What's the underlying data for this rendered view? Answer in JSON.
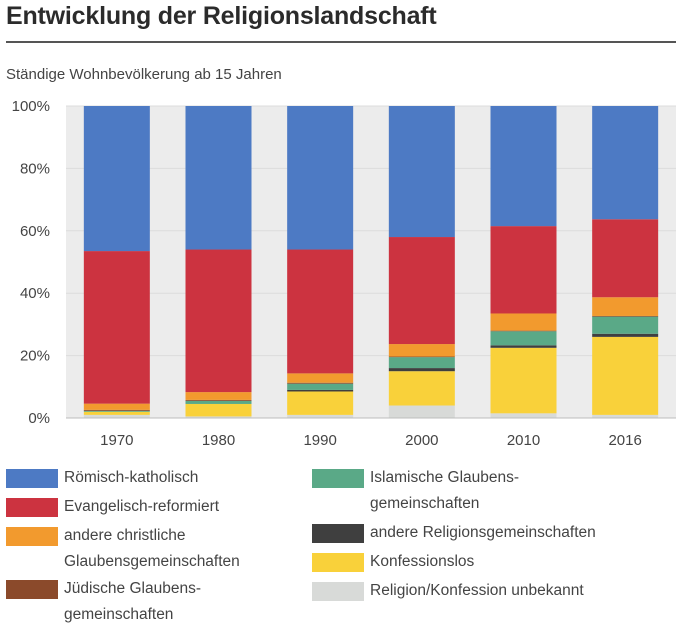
{
  "header": {
    "title": "Entwicklung der Religionslandschaft",
    "subtitle": "Ständige Wohnbevölkerung ab 15 Jahren"
  },
  "chart_data": {
    "type": "bar",
    "stacked": true,
    "title": "Entwicklung der Religionslandschaft",
    "subtitle": "Ständige Wohnbevölkerung ab 15 Jahren",
    "categories": [
      "1970",
      "1980",
      "1990",
      "2000",
      "2010",
      "2016"
    ],
    "ylim": [
      0,
      100
    ],
    "yticks": [
      "0%",
      "20%",
      "40%",
      "60%",
      "80%",
      "100%"
    ],
    "ytick_values": [
      0,
      20,
      40,
      60,
      80,
      100
    ],
    "series": [
      {
        "name": "Religion/Konfession unbekannt",
        "color": "#d8dad8",
        "values": [
          1.0,
          0.5,
          1.0,
          4.0,
          1.5,
          1.0
        ]
      },
      {
        "name": "Konfessionslos",
        "color": "#f9d13a",
        "values": [
          1.0,
          4.0,
          7.5,
          11.0,
          21.0,
          25.0
        ]
      },
      {
        "name": "andere Religionsgemeinschaften",
        "color": "#3f3f3f",
        "values": [
          0.0,
          0.0,
          0.5,
          1.0,
          0.8,
          1.0
        ]
      },
      {
        "name": "Islamische Glaubensgemeinschaften",
        "color": "#5aa987",
        "values": [
          0.3,
          1.0,
          2.0,
          3.5,
          4.5,
          5.5
        ]
      },
      {
        "name": "Jüdische Glaubensgemeinschaften",
        "color": "#8b4a2b",
        "values": [
          0.3,
          0.3,
          0.3,
          0.2,
          0.2,
          0.2
        ]
      },
      {
        "name": "andere christliche Glaubensgemeinschaften",
        "color": "#f29a2e",
        "values": [
          2.0,
          2.5,
          3.0,
          4.0,
          5.5,
          6.0
        ]
      },
      {
        "name": "Evangelisch-reformiert",
        "color": "#cc3340",
        "values": [
          48.9,
          45.7,
          39.7,
          34.3,
          28.0,
          25.0
        ]
      },
      {
        "name": "Römisch-katholisch",
        "color": "#4d7ac4",
        "values": [
          46.5,
          46.0,
          46.0,
          42.0,
          38.5,
          36.3
        ]
      }
    ]
  },
  "legend": {
    "items": [
      {
        "lines": [
          "Römisch-katholisch"
        ],
        "color": "#4d7ac4"
      },
      {
        "lines": [
          "Evangelisch-reformiert"
        ],
        "color": "#cc3340"
      },
      {
        "lines": [
          "andere christliche",
          "Glaubensgemeinschaften"
        ],
        "color": "#f29a2e"
      },
      {
        "lines": [
          "Jüdische Glaubens-",
          "gemeinschaften"
        ],
        "color": "#8b4a2b"
      },
      {
        "lines": [
          "Islamische Glaubens-",
          "gemeinschaften"
        ],
        "color": "#5aa987"
      },
      {
        "lines": [
          "andere Religionsgemeinschaften"
        ],
        "color": "#3f3f3f"
      },
      {
        "lines": [
          "Konfessionslos"
        ],
        "color": "#f9d13a"
      },
      {
        "lines": [
          "Religion/Konfession unbekannt"
        ],
        "color": "#d8dad8"
      }
    ]
  }
}
